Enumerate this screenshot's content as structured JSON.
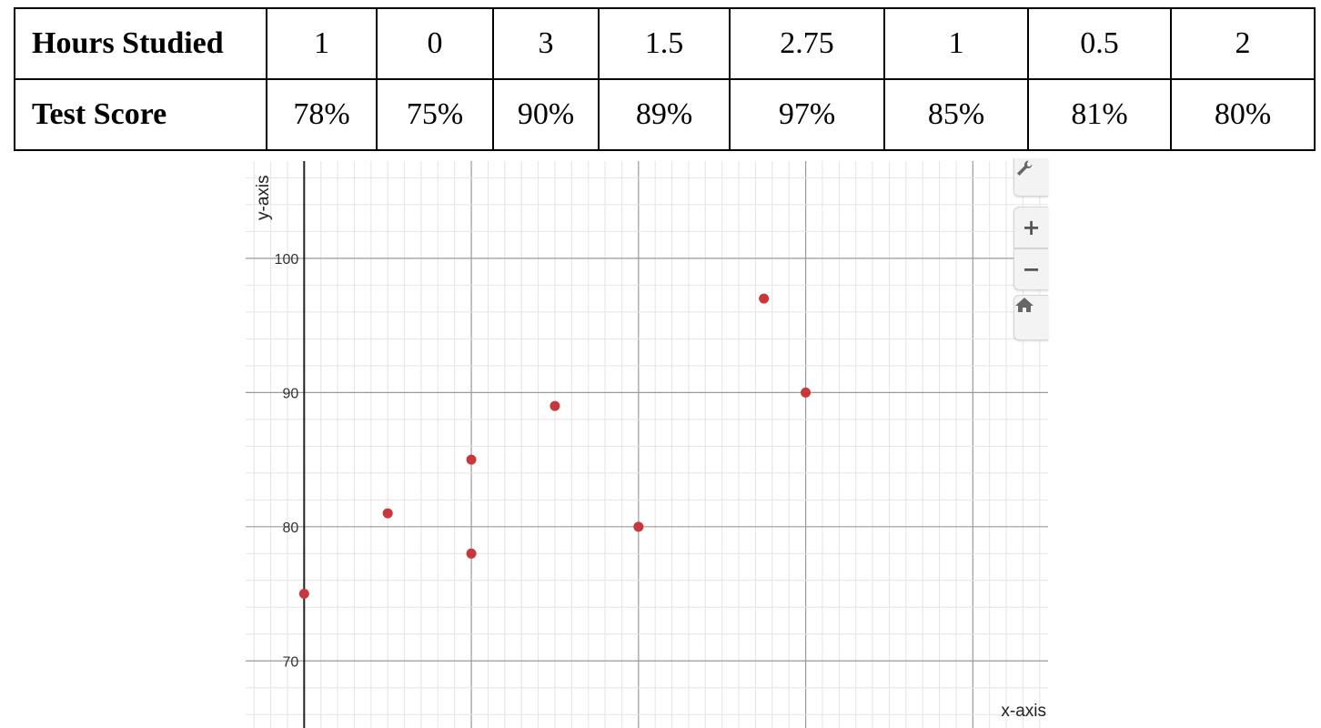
{
  "table": {
    "row1_label": "Hours Studied",
    "row2_label": "Test Score",
    "hours": [
      "1",
      "0",
      "3",
      "1.5",
      "2.75",
      "1",
      "0.5",
      "2"
    ],
    "scores": [
      "78%",
      "75%",
      "90%",
      "89%",
      "97%",
      "85%",
      "81%",
      "80%"
    ]
  },
  "chart_data": {
    "type": "scatter",
    "title": "",
    "xlabel": "x-axis",
    "ylabel": "y-axis",
    "x": [
      1,
      0,
      3,
      1.5,
      2.75,
      1,
      0.5,
      2
    ],
    "y": [
      78,
      75,
      90,
      89,
      97,
      85,
      81,
      80
    ],
    "xlim": [
      -0.35,
      4.45
    ],
    "ylim": [
      65,
      107.25
    ],
    "y_ticks": [
      70,
      80,
      90,
      100
    ],
    "x_ticks": [],
    "grid": true,
    "point_color": "#c8373a"
  },
  "toolbar": {
    "settings_icon": "wrench-icon",
    "zoom_in_label": "+",
    "zoom_out_label": "−",
    "home_icon": "home-icon"
  }
}
